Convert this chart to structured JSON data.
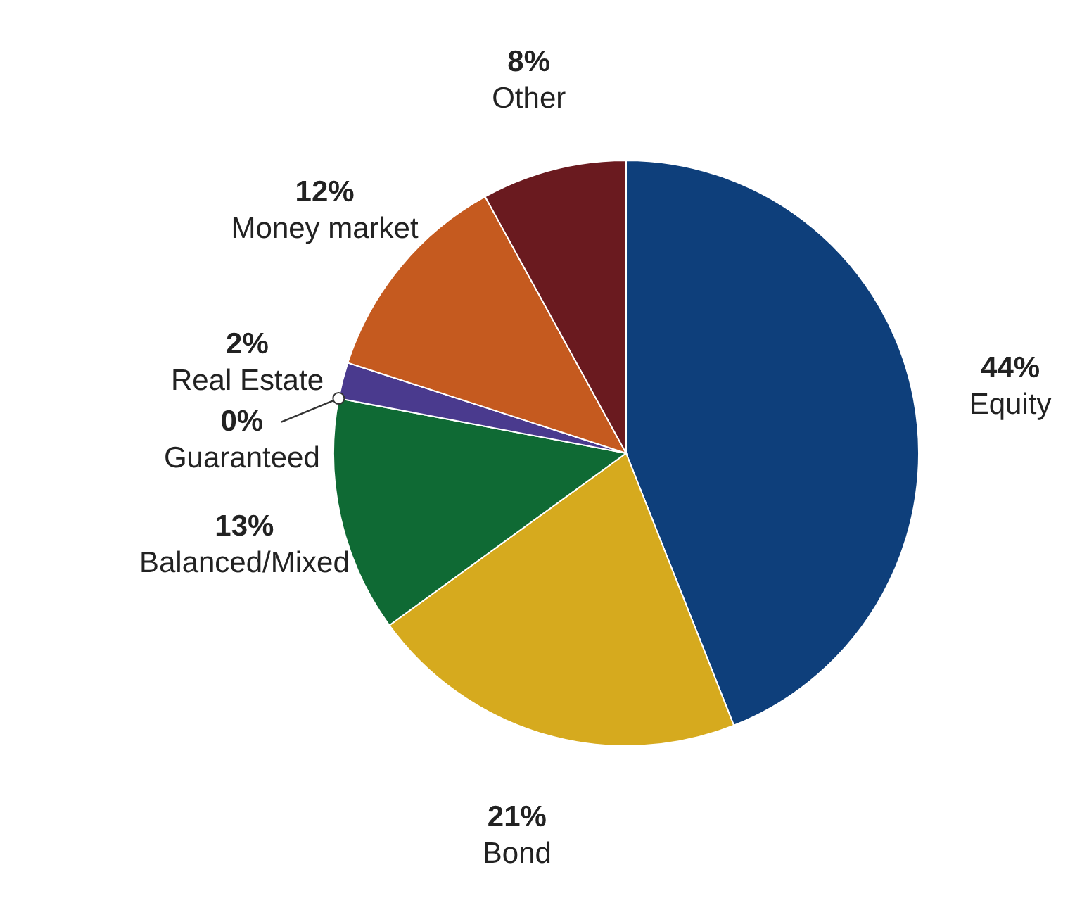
{
  "chart_data": {
    "type": "pie",
    "categories": [
      "Equity",
      "Bond",
      "Balanced/Mixed",
      "Guaranteed",
      "Real Estate",
      "Money market",
      "Other"
    ],
    "values": [
      44,
      21,
      13,
      0,
      2,
      12,
      8
    ],
    "colors": [
      "#0e3f7b",
      "#d6aa1e",
      "#0f6a34",
      "#ffffff",
      "#4a3a8e",
      "#c55a1f",
      "#6a1a1f"
    ],
    "value_labels": [
      "44%",
      "21%",
      "13%",
      "0%",
      "2%",
      "12%",
      "8%"
    ]
  }
}
